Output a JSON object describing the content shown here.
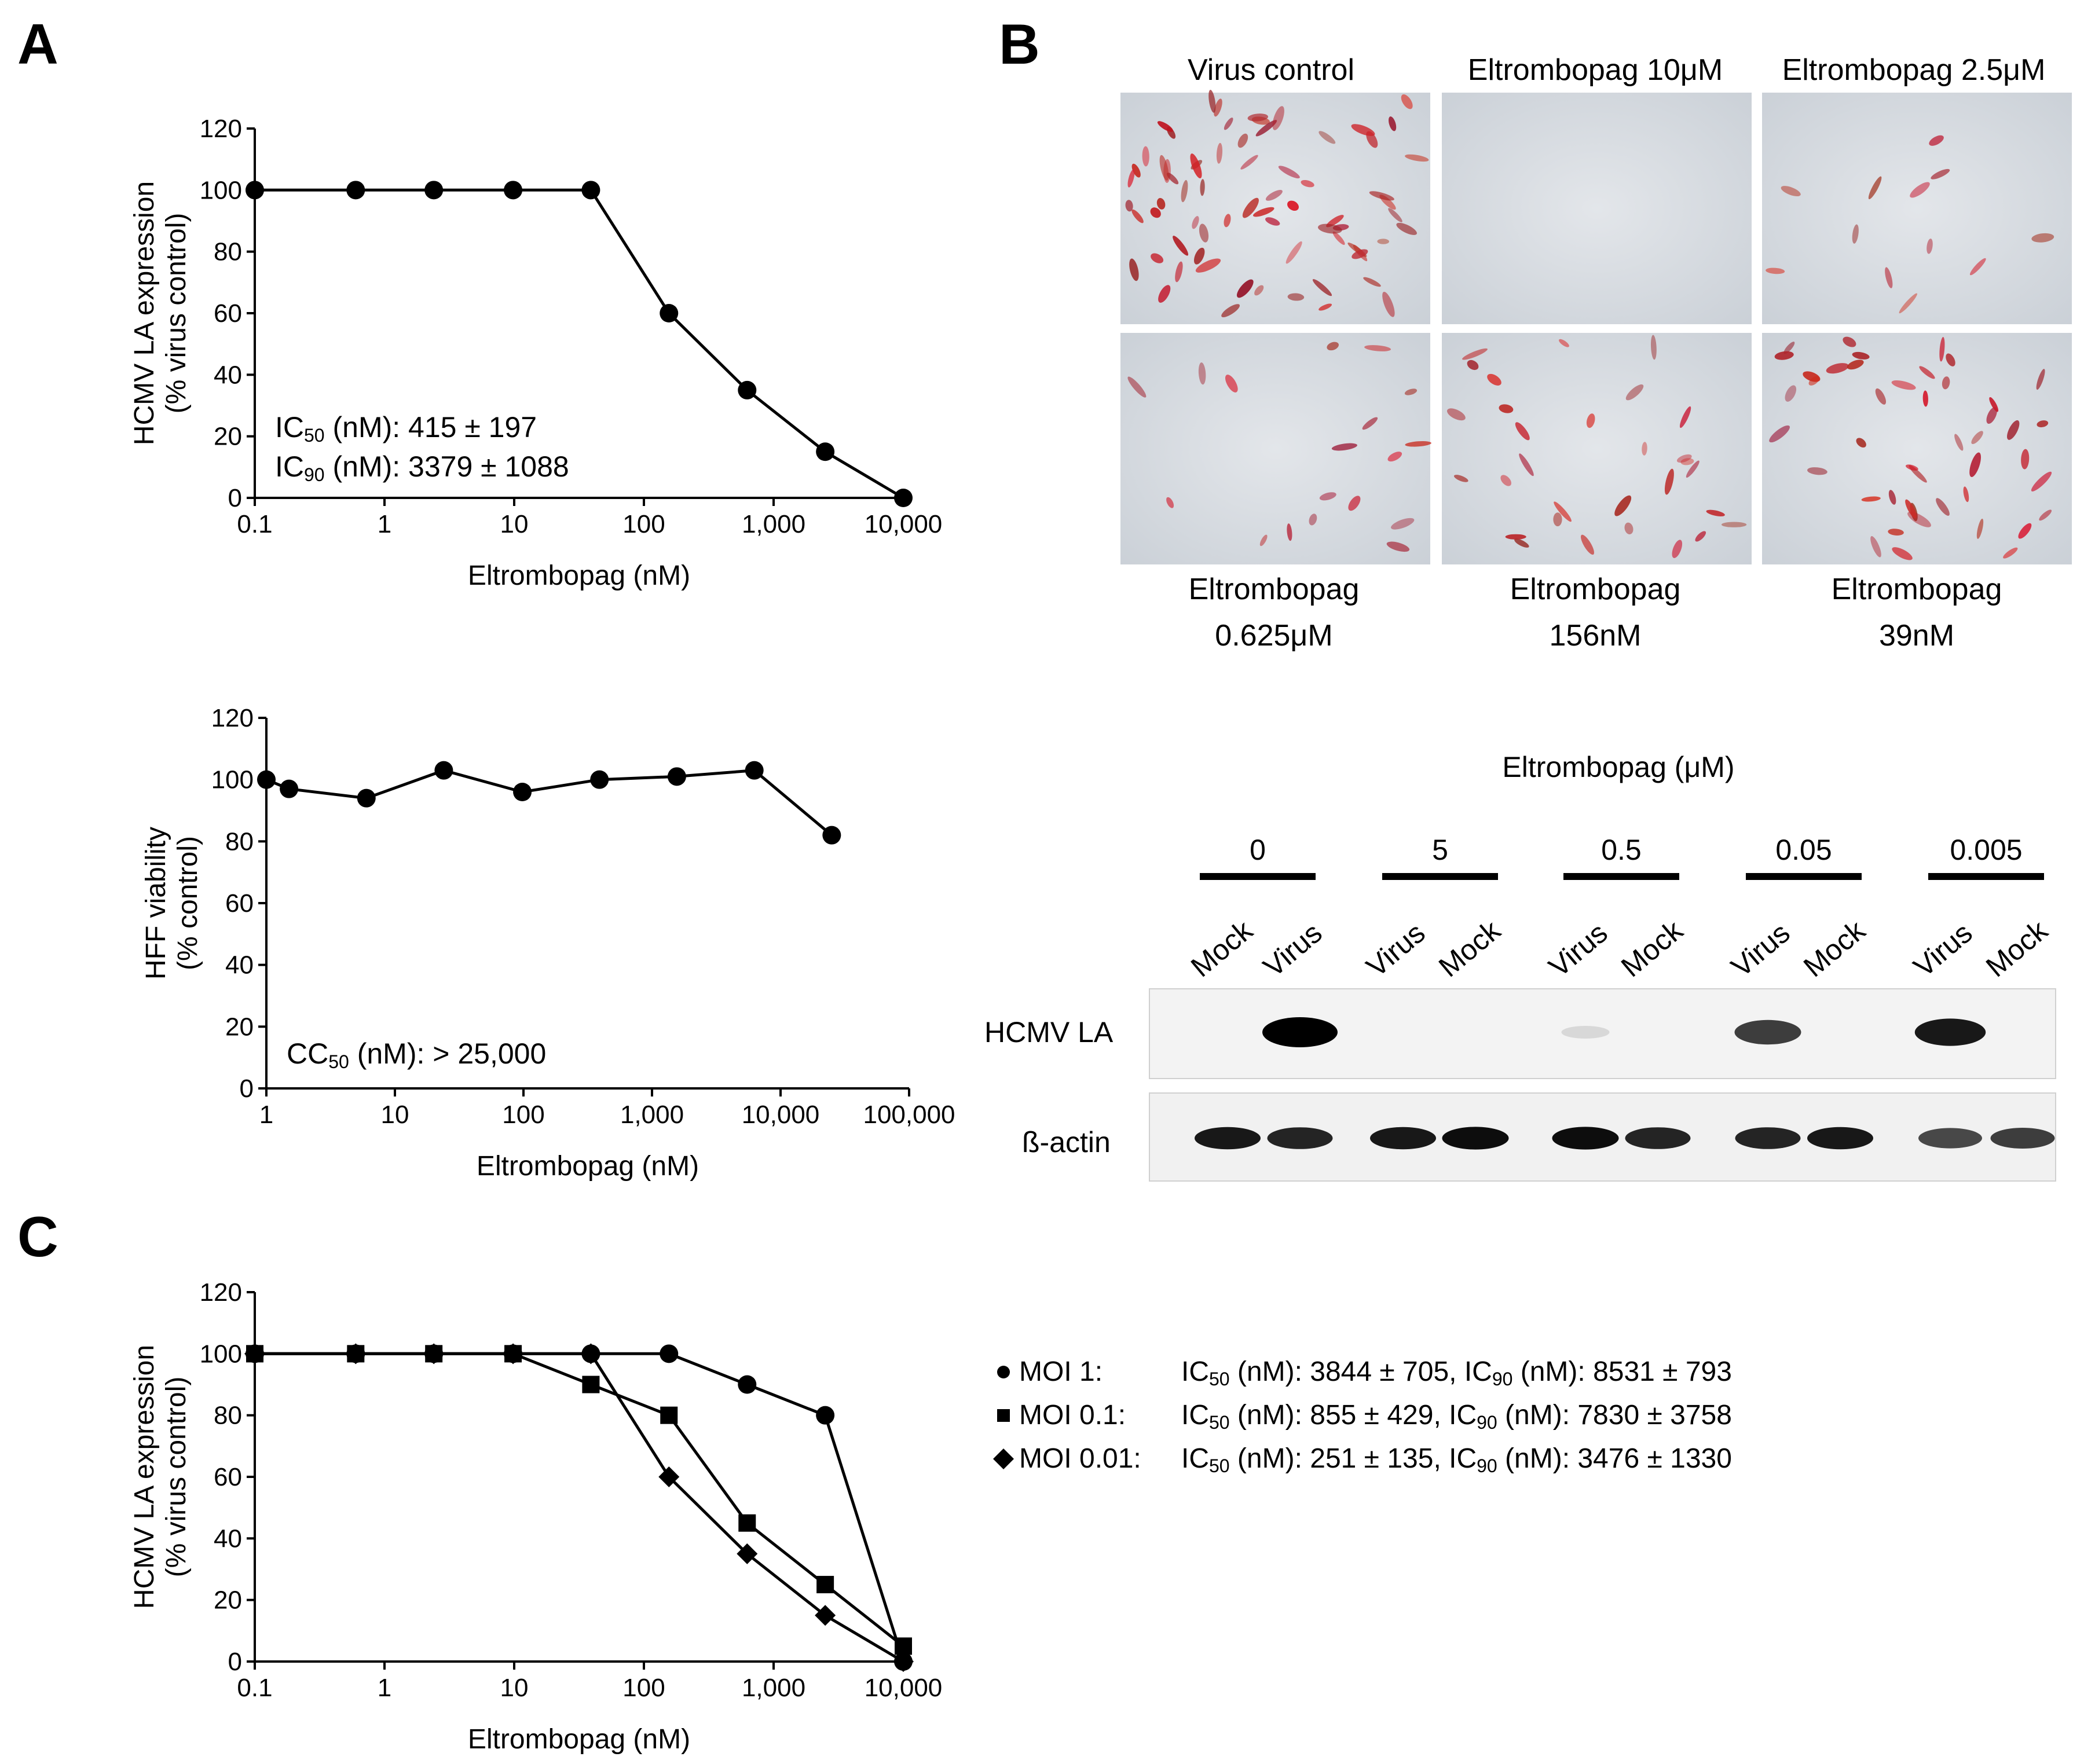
{
  "panels": {
    "a": "A",
    "b": "B",
    "c": "C"
  },
  "chart_data": [
    {
      "id": "A-top",
      "type": "line",
      "x_scale": "log",
      "x": [
        0.1,
        0.6,
        2.4,
        9.8,
        39,
        156,
        625,
        2500,
        10000
      ],
      "series": [
        {
          "marker": "circle",
          "values": [
            100,
            100,
            100,
            100,
            100,
            60,
            35,
            15,
            0
          ]
        }
      ],
      "xlabel": "Eltrombopag (nM)",
      "ylabel": [
        "HCMV LA expression",
        "(% virus control)"
      ],
      "xlim": [
        0.1,
        10000
      ],
      "ylim": [
        0,
        120
      ],
      "xticks": [
        0.1,
        1,
        10,
        100,
        1000,
        10000
      ],
      "xtick_labels": [
        "0.1",
        "1",
        "10",
        "100",
        "1,000",
        "10,000"
      ],
      "yticks": [
        0,
        20,
        40,
        60,
        80,
        100,
        120
      ],
      "ytick_labels": [
        "0",
        "20",
        "40",
        "60",
        "80",
        "100",
        "120"
      ],
      "annotations": [
        {
          "prefix": "IC",
          "sub": "50",
          "suffix": " (nM): 415 ± 197"
        },
        {
          "prefix": "IC",
          "sub": "90",
          "suffix": " (nM): 3379 ± 1088"
        }
      ]
    },
    {
      "id": "A-bottom",
      "type": "line",
      "x_scale": "log",
      "x": [
        1,
        1.5,
        6,
        24,
        98,
        390,
        1560,
        6250,
        25000
      ],
      "series": [
        {
          "marker": "circle",
          "values": [
            100,
            97,
            94,
            103,
            96,
            100,
            101,
            103,
            82
          ]
        }
      ],
      "xlabel": "Eltrombopag (nM)",
      "ylabel": [
        "HFF viability",
        "(% control)"
      ],
      "xlim": [
        1,
        100000
      ],
      "ylim": [
        0,
        120
      ],
      "xticks": [
        1,
        10,
        100,
        1000,
        10000,
        100000
      ],
      "xtick_labels": [
        "1",
        "10",
        "100",
        "1,000",
        "10,000",
        "100,000"
      ],
      "yticks": [
        0,
        20,
        40,
        60,
        80,
        100,
        120
      ],
      "ytick_labels": [
        "0",
        "20",
        "40",
        "60",
        "80",
        "100",
        "120"
      ],
      "annotations": [
        {
          "prefix": "CC",
          "sub": "50",
          "suffix": " (nM): > 25,000"
        }
      ]
    },
    {
      "id": "C",
      "type": "line",
      "x_scale": "log",
      "x": [
        0.1,
        0.6,
        2.4,
        9.8,
        39,
        156,
        625,
        2500,
        10000
      ],
      "series": [
        {
          "marker": "circle",
          "values": [
            100,
            100,
            100,
            100,
            100,
            100,
            90,
            80,
            0
          ]
        },
        {
          "marker": "square",
          "values": [
            100,
            100,
            100,
            100,
            90,
            80,
            45,
            25,
            5
          ]
        },
        {
          "marker": "diamond",
          "values": [
            100,
            100,
            100,
            100,
            100,
            60,
            35,
            15,
            0
          ]
        }
      ],
      "xlabel": "Eltrombopag (nM)",
      "ylabel": [
        "HCMV LA expression",
        "(% virus control)"
      ],
      "xlim": [
        0.1,
        10000
      ],
      "ylim": [
        0,
        120
      ],
      "xticks": [
        0.1,
        1,
        10,
        100,
        1000,
        10000
      ],
      "xtick_labels": [
        "0.1",
        "1",
        "10",
        "100",
        "1,000",
        "10,000"
      ],
      "yticks": [
        0,
        20,
        40,
        60,
        80,
        100,
        120
      ],
      "ytick_labels": [
        "0",
        "20",
        "40",
        "60",
        "80",
        "100",
        "120"
      ],
      "legend": [
        {
          "marker": "circle",
          "label": "MOI 1:",
          "ic50": "IC",
          "ic50_sub": "50",
          "ic50_text": " (nM): 3844 ± 705, ",
          "ic90": "IC",
          "ic90_sub": "90",
          "ic90_text": " (nM): 8531 ± 793"
        },
        {
          "marker": "square",
          "label": "MOI 0.1:",
          "ic50": "IC",
          "ic50_sub": "50",
          "ic50_text": " (nM): 855 ± 429, ",
          "ic90": "IC",
          "ic90_sub": "90",
          "ic90_text": " (nM): 7830 ± 3758"
        },
        {
          "marker": "diamond",
          "label": "MOI 0.01:",
          "ic50": "IC",
          "ic50_sub": "50",
          "ic50_text": " (nM): 251 ± 135, ",
          "ic90": "IC",
          "ic90_sub": "90",
          "ic90_text": " (nM): 3476 ± 1330"
        }
      ]
    }
  ],
  "micrographs": {
    "top_labels": [
      "Virus control",
      "Eltrombopag 10μM",
      "Eltrombopag 2.5μM"
    ],
    "bottom_labels": [
      [
        "Eltrombopag",
        "0.625μM"
      ],
      [
        "Eltrombopag",
        "156nM"
      ],
      [
        "Eltrombopag",
        "39nM"
      ]
    ]
  },
  "blot": {
    "title": "Eltrombopag (μM)",
    "groups": [
      {
        "label": "0",
        "lanes": [
          "Mock",
          "Virus"
        ]
      },
      {
        "label": "5",
        "lanes": [
          "Virus",
          "Mock"
        ]
      },
      {
        "label": "0.5",
        "lanes": [
          "Virus",
          "Mock"
        ]
      },
      {
        "label": "0.05",
        "lanes": [
          "Virus",
          "Mock"
        ]
      },
      {
        "label": "0.005",
        "lanes": [
          "Virus",
          "Mock"
        ]
      }
    ],
    "rows": [
      "HCMV LA",
      "ß-actin"
    ],
    "la_band_strength": [
      0,
      1,
      0,
      0,
      0.06,
      0,
      0.7,
      0,
      0.85,
      0
    ],
    "actin_band_strength": [
      0.9,
      0.85,
      0.9,
      0.95,
      0.95,
      0.85,
      0.85,
      0.9,
      0.7,
      0.75
    ]
  }
}
